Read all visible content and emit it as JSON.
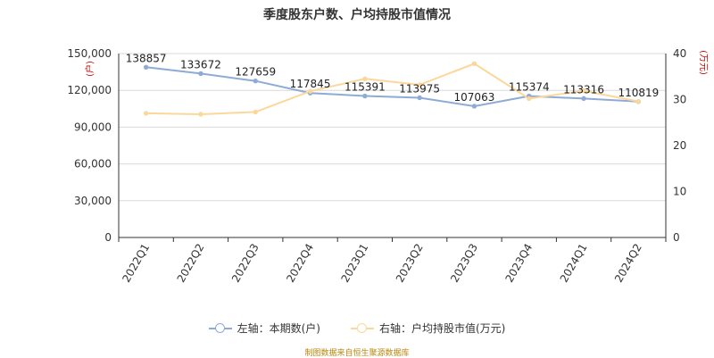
{
  "chart_data": {
    "type": "line",
    "title": "季度股东户数、户均持股市值情况",
    "categories": [
      "2022Q1",
      "2022Q2",
      "2022Q3",
      "2022Q4",
      "2023Q1",
      "2023Q2",
      "2023Q3",
      "2023Q4",
      "2024Q1",
      "2024Q2"
    ],
    "y_left": {
      "label": "(户)",
      "lim": [
        0,
        150000
      ],
      "ticks": [
        0,
        30000,
        60000,
        90000,
        120000,
        150000
      ],
      "tick_labels": [
        "0",
        "30,000",
        "60,000",
        "90,000",
        "120,000",
        "150,000"
      ]
    },
    "y_right": {
      "label": "(万元)",
      "lim": [
        0,
        40
      ],
      "ticks": [
        0,
        10,
        20,
        30,
        40
      ],
      "tick_labels": [
        "0",
        "10",
        "20",
        "30",
        "40"
      ]
    },
    "series": [
      {
        "name": "左轴：本期数(户)",
        "axis": "left",
        "color": "#8eaad6",
        "values": [
          138857,
          133672,
          127659,
          117845,
          115391,
          113975,
          107063,
          115374,
          113316,
          110819
        ],
        "data_labels": [
          "138857",
          "133672",
          "127659",
          "117845",
          "115391",
          "113975",
          "107063",
          "115374",
          "113316",
          "110819"
        ]
      },
      {
        "name": "右轴：户均持股市值(万元)",
        "axis": "right",
        "color": "#fbd89a",
        "values": [
          27.0,
          26.8,
          27.3,
          31.8,
          34.5,
          33.2,
          37.8,
          30.2,
          31.9,
          29.6
        ]
      }
    ],
    "grid": true,
    "legend": "bottom-center"
  },
  "source_note": "制图数据来自恒生聚源数据库"
}
